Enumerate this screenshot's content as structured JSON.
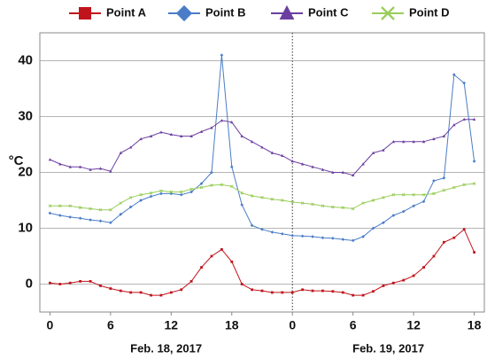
{
  "chart_data": {
    "type": "line",
    "y_label": "°C",
    "x": [
      0,
      1,
      2,
      3,
      4,
      5,
      6,
      7,
      8,
      9,
      10,
      11,
      12,
      13,
      14,
      15,
      16,
      17,
      18,
      19,
      20,
      21,
      22,
      23,
      24,
      25,
      26,
      27,
      28,
      29,
      30,
      31,
      32,
      33,
      34,
      35,
      36,
      37,
      38,
      39,
      40,
      41,
      42
    ],
    "series": [
      {
        "name": "Point A",
        "color": "#c0141c",
        "marker": "square",
        "values": [
          0.2,
          0,
          0.2,
          0.5,
          0.5,
          -0.3,
          -0.8,
          -1.2,
          -1.5,
          -1.5,
          -2,
          -2,
          -1.5,
          -1,
          0.5,
          3,
          5,
          6.2,
          4,
          0,
          -1,
          -1.2,
          -1.5,
          -1.5,
          -1.5,
          -1,
          -1.2,
          -1.2,
          -1.3,
          -1.5,
          -2,
          -2,
          -1.3,
          -0.3,
          0.2,
          0.7,
          1.5,
          3,
          5,
          7.5,
          8.3,
          9.8,
          5.7
        ]
      },
      {
        "name": "Point B",
        "color": "#4a7cc7",
        "marker": "diamond",
        "values": [
          12.7,
          12.3,
          12,
          11.8,
          11.5,
          11.3,
          11,
          12.5,
          13.8,
          15,
          15.7,
          16.2,
          16.2,
          16,
          16.5,
          18,
          20,
          41,
          21,
          14.2,
          10.5,
          9.8,
          9.3,
          9,
          8.7,
          8.6,
          8.5,
          8.3,
          8.2,
          8,
          7.8,
          8.5,
          10,
          11,
          12.3,
          13,
          14,
          14.8,
          18.5,
          19,
          37.5,
          36,
          22
        ]
      },
      {
        "name": "Point C",
        "color": "#6b3fa0",
        "marker": "triangle",
        "values": [
          22.3,
          21.5,
          21,
          21,
          20.5,
          20.7,
          20.2,
          23.5,
          24.5,
          26,
          26.5,
          27.2,
          26.8,
          26.5,
          26.5,
          27.3,
          28,
          29.3,
          29,
          26.5,
          25.5,
          24.5,
          23.5,
          23,
          22,
          21.5,
          21,
          20.5,
          20,
          20,
          19.5,
          21.5,
          23.5,
          24,
          25.5,
          25.5,
          25.5,
          25.5,
          26,
          26.5,
          28.5,
          29.5,
          29.5
        ]
      },
      {
        "name": "Point D",
        "color": "#9acd5a",
        "marker": "x",
        "values": [
          14,
          14,
          14,
          13.7,
          13.5,
          13.3,
          13.3,
          14.5,
          15.5,
          16,
          16.3,
          16.7,
          16.5,
          16.5,
          17,
          17.3,
          17.7,
          17.8,
          17.5,
          16.3,
          15.8,
          15.5,
          15.2,
          15,
          14.7,
          14.5,
          14.3,
          14,
          13.8,
          13.7,
          13.5,
          14.5,
          15,
          15.5,
          16,
          16,
          16,
          16,
          16.2,
          16.8,
          17.3,
          17.8,
          18
        ]
      }
    ],
    "xlim": [
      -1,
      43
    ],
    "xticks": [
      0,
      6,
      12,
      18,
      {
        "value": 24,
        "label": "0"
      },
      {
        "value": 30,
        "label": "6"
      },
      {
        "value": 36,
        "label": "12"
      },
      {
        "value": 42,
        "label": "18"
      }
    ],
    "ylim": [
      -5,
      45
    ],
    "yticks": [
      0,
      10,
      20,
      30,
      40
    ],
    "grid": true,
    "divider": 24,
    "date_labels": [
      "Feb. 18, 2017",
      "Feb. 19, 2017"
    ],
    "legend": "top"
  }
}
